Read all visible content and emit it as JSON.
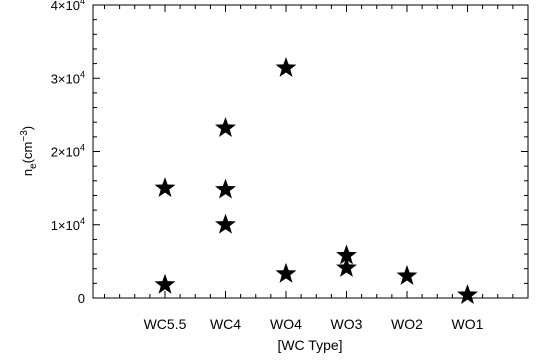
{
  "chart_data": {
    "type": "scatter",
    "xlabel": "[WC Type]",
    "ylabel": "n_e(cm^-3)",
    "ylabel_parts": {
      "base": "n",
      "sub": "e",
      "open": "(cm",
      "sup": "−3",
      "close": ")"
    },
    "categories": [
      "WC5.5",
      "WC4",
      "WO4",
      "WO3",
      "WO2",
      "WO1"
    ],
    "ylim": [
      0,
      40000
    ],
    "yticks": [
      {
        "value": 0,
        "base": "0",
        "exp": ""
      },
      {
        "value": 10000,
        "base": "1×10",
        "exp": "4"
      },
      {
        "value": 20000,
        "base": "2×10",
        "exp": "4"
      },
      {
        "value": 30000,
        "base": "3×10",
        "exp": "4"
      },
      {
        "value": 40000,
        "base": "4×10",
        "exp": "4"
      }
    ],
    "marker": "star",
    "marker_color": "#000000",
    "points": [
      {
        "category": "WC5.5",
        "y": 15000
      },
      {
        "category": "WC5.5",
        "y": 1800
      },
      {
        "category": "WC4",
        "y": 23200
      },
      {
        "category": "WC4",
        "y": 14800
      },
      {
        "category": "WC4",
        "y": 10000
      },
      {
        "category": "WO4",
        "y": 31400
      },
      {
        "category": "WO4",
        "y": 3300
      },
      {
        "category": "WO3",
        "y": 5800
      },
      {
        "category": "WO3",
        "y": 4100
      },
      {
        "category": "WO2",
        "y": 3000
      },
      {
        "category": "WO1",
        "y": 400
      }
    ],
    "grid": false,
    "legend": "none"
  }
}
